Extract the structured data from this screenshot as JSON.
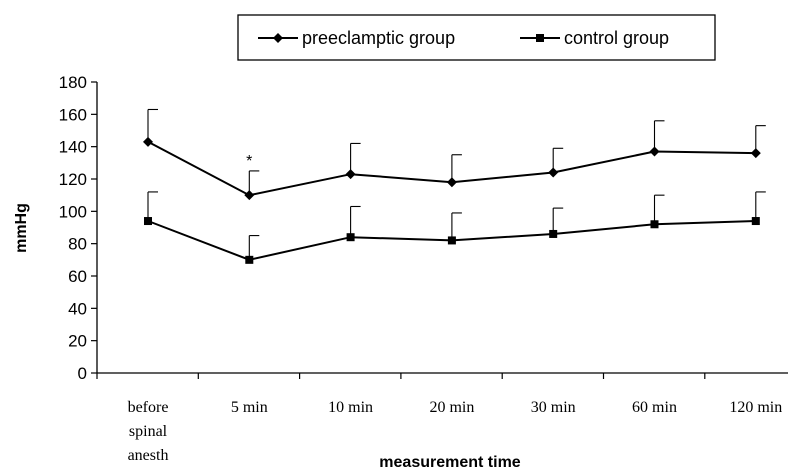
{
  "chart_data": {
    "type": "line",
    "categories": [
      [
        "before",
        "spinal",
        "anesth"
      ],
      [
        "5 min"
      ],
      [
        "10 min"
      ],
      [
        "20 min"
      ],
      [
        "30 min"
      ],
      [
        "60 min"
      ],
      [
        "120 min"
      ]
    ],
    "series": [
      {
        "name": "preeclamptic group",
        "marker": "diamond",
        "values": [
          143,
          110,
          123,
          118,
          124,
          137,
          136
        ],
        "error_upper": [
          163,
          125,
          142,
          135,
          139,
          156,
          153
        ]
      },
      {
        "name": "control group",
        "marker": "square",
        "values": [
          94,
          70,
          84,
          82,
          86,
          92,
          94
        ],
        "error_upper": [
          112,
          85,
          103,
          99,
          102,
          110,
          112
        ]
      }
    ],
    "xlabel": "measurement time",
    "ylabel": "mmHg",
    "ylim": [
      0,
      180
    ],
    "yticks": [
      0,
      20,
      40,
      60,
      80,
      100,
      120,
      140,
      160,
      180
    ],
    "grid": false,
    "legend_position": "top-center",
    "annotations": [
      {
        "text": "*",
        "category_index": 1,
        "series_index": 0
      }
    ],
    "colors": {
      "line": "#000000",
      "background": "#ffffff"
    }
  }
}
